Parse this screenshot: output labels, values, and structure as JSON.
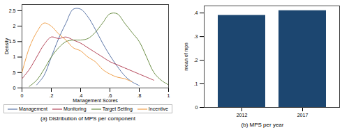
{
  "chart_data": [
    {
      "type": "line",
      "caption": "(a) Distribution of MPS per component",
      "x_label": "Management Scores",
      "y_label": "Density",
      "x": [
        0,
        0.05,
        0.1,
        0.15,
        0.2,
        0.25,
        0.3,
        0.35,
        0.4,
        0.45,
        0.5,
        0.55,
        0.6,
        0.65,
        0.7,
        0.75,
        0.8,
        0.85,
        0.9,
        0.95,
        1
      ],
      "series": [
        {
          "name": "Management",
          "color": "#5d77a8",
          "values": [
            null,
            null,
            0.1,
            0.4,
            1.0,
            1.6,
            2.1,
            2.55,
            2.55,
            2.3,
            1.9,
            1.45,
            1.05,
            0.7,
            0.4,
            0.2,
            0.08,
            null,
            null,
            null,
            null
          ]
        },
        {
          "name": "Monitoring",
          "color": "#b5475a",
          "values": [
            0.3,
            0.6,
            1.0,
            1.4,
            1.65,
            1.6,
            1.65,
            1.55,
            1.45,
            1.3,
            1.15,
            1.0,
            0.85,
            0.75,
            0.65,
            0.55,
            0.45,
            0.35,
            0.25,
            null,
            null
          ]
        },
        {
          "name": "Target Setting",
          "color": "#6d8f47",
          "values": [
            null,
            0.05,
            0.25,
            0.6,
            1.0,
            1.3,
            1.5,
            1.55,
            1.55,
            1.6,
            1.8,
            2.1,
            2.4,
            2.4,
            2.1,
            1.8,
            1.5,
            1.0,
            0.5,
            0.25,
            0.1
          ]
        },
        {
          "name": "Incentive",
          "color": "#f0a04b",
          "values": [
            0.5,
            1.3,
            1.8,
            2.1,
            2.0,
            1.75,
            1.55,
            1.3,
            1.2,
            1.0,
            0.85,
            0.6,
            0.45,
            0.35,
            0.3,
            0.2,
            null,
            null,
            null,
            null,
            null
          ]
        }
      ],
      "xlim": [
        0,
        1
      ],
      "xticks": [
        0,
        {
          "value": 0.2,
          "label": ".2"
        },
        {
          "value": 0.4,
          "label": ".4"
        },
        {
          "value": 0.6,
          "label": ".6"
        },
        {
          "value": 0.8,
          "label": ".8"
        },
        1
      ],
      "ylim": [
        0,
        2.7
      ],
      "yticks": [
        0,
        {
          "value": 0.5,
          "label": ".5"
        },
        1,
        1.5,
        2,
        2.5
      ],
      "legend": "bottom"
    },
    {
      "type": "bar",
      "caption": "(b) MPS per year",
      "y_label": "mean of mps",
      "categories": [
        "2012",
        "2017"
      ],
      "values": [
        0.39,
        0.41
      ],
      "color": "#1c4670",
      "ylim": [
        0,
        0.43
      ],
      "yticks": [
        0,
        {
          "value": 0.1,
          "label": ".1"
        },
        {
          "value": 0.2,
          "label": ".2"
        },
        {
          "value": 0.3,
          "label": ".3"
        },
        {
          "value": 0.4,
          "label": ".4"
        }
      ]
    }
  ]
}
